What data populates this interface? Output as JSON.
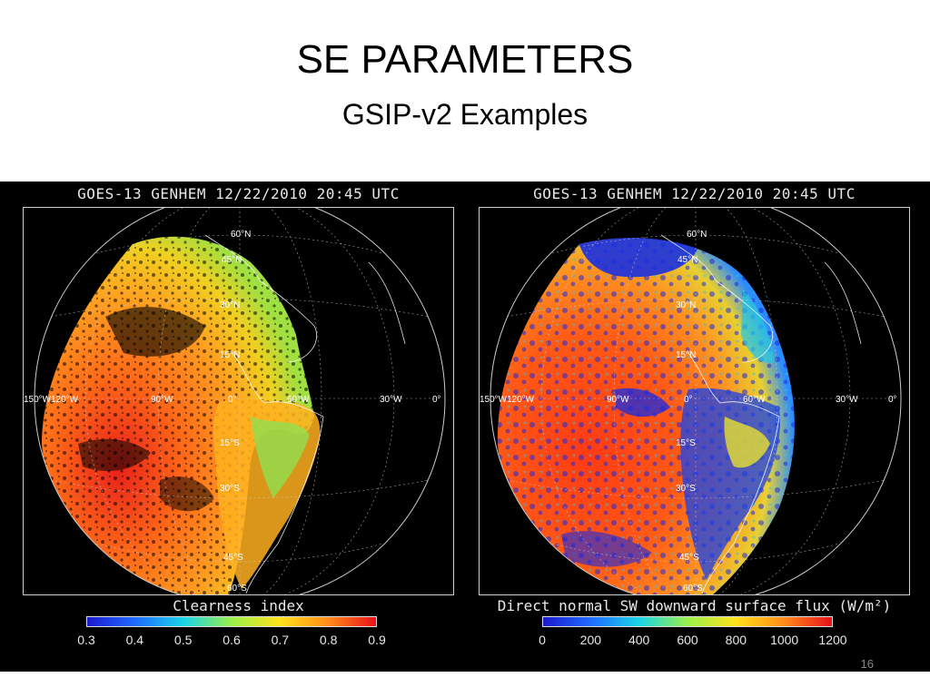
{
  "slide": {
    "title": "SE PARAMETERS",
    "subtitle": "GSIP-v2 Examples",
    "page_number": "16"
  },
  "panels": [
    {
      "header": "GOES-13 GENHEM 12/22/2010 20:45 UTC",
      "colorbar_title": "Clearness index",
      "ticks": [
        "0.3",
        "0.4",
        "0.5",
        "0.6",
        "0.7",
        "0.8",
        "0.9"
      ],
      "geo_labels": [
        "60°N",
        "45°N",
        "30°N",
        "15°N",
        "0°",
        "15°S",
        "30°S",
        "45°S",
        "60°S",
        "150°W",
        "120°W",
        "90°W",
        "60°W",
        "30°W",
        "0°"
      ]
    },
    {
      "header": "GOES-13 GENHEM 12/22/2010 20:45 UTC",
      "colorbar_title": "Direct normal SW downward surface flux (W/m²)",
      "ticks": [
        "0",
        "200",
        "400",
        "600",
        "800",
        "1000",
        "1200"
      ],
      "geo_labels": [
        "60°N",
        "45°N",
        "30°N",
        "15°N",
        "0°",
        "15°S",
        "30°S",
        "45°S",
        "60°S",
        "150°W",
        "120°W",
        "90°W",
        "60°W",
        "30°W",
        "0°"
      ]
    }
  ],
  "colors": {
    "background": "#000000",
    "colorbar_stops": [
      "#1a1acc",
      "#1f6cff",
      "#19d4e6",
      "#9af04a",
      "#ffe21a",
      "#ff8c19",
      "#e8101a"
    ]
  }
}
